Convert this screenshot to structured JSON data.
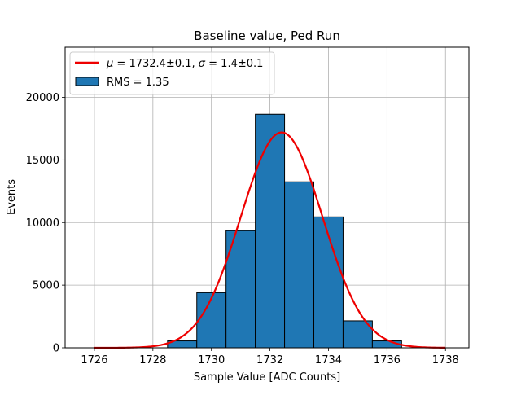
{
  "chart_data": {
    "type": "bar",
    "title": "Baseline value, Ped Run",
    "xlabel": "Sample Value [ADC Counts]",
    "ylabel": "Events",
    "xlim": [
      1725,
      1738.8
    ],
    "ylim": [
      0,
      24000
    ],
    "xticks": [
      1726,
      1728,
      1730,
      1732,
      1734,
      1736,
      1738
    ],
    "yticks": [
      0,
      5000,
      10000,
      15000,
      20000
    ],
    "grid": true,
    "legend_position": "top-left",
    "histogram": {
      "name": "RMS = 1.35",
      "color": "#1f77b4",
      "edge_color": "#000000",
      "bins": [
        {
          "x0": 1728.5,
          "x1": 1729.5,
          "count": 550
        },
        {
          "x0": 1729.5,
          "x1": 1730.5,
          "count": 4400
        },
        {
          "x0": 1730.5,
          "x1": 1731.5,
          "count": 9350
        },
        {
          "x0": 1731.5,
          "x1": 1732.5,
          "count": 18650
        },
        {
          "x0": 1732.5,
          "x1": 1733.5,
          "count": 13250
        },
        {
          "x0": 1733.5,
          "x1": 1734.5,
          "count": 10450
        },
        {
          "x0": 1734.5,
          "x1": 1735.5,
          "count": 2150
        },
        {
          "x0": 1735.5,
          "x1": 1736.5,
          "count": 550
        }
      ]
    },
    "fit": {
      "name_parts": {
        "mu_symbol": "μ",
        "mu_value": " = 1732.4±0.1, ",
        "sigma_symbol": "σ",
        "sigma_value": " = 1.4±0.1"
      },
      "color": "#ee0000",
      "model": "gaussian",
      "amplitude": 17200,
      "mean": 1732.4,
      "sigma": 1.4,
      "x_range": [
        1726,
        1738
      ]
    }
  }
}
